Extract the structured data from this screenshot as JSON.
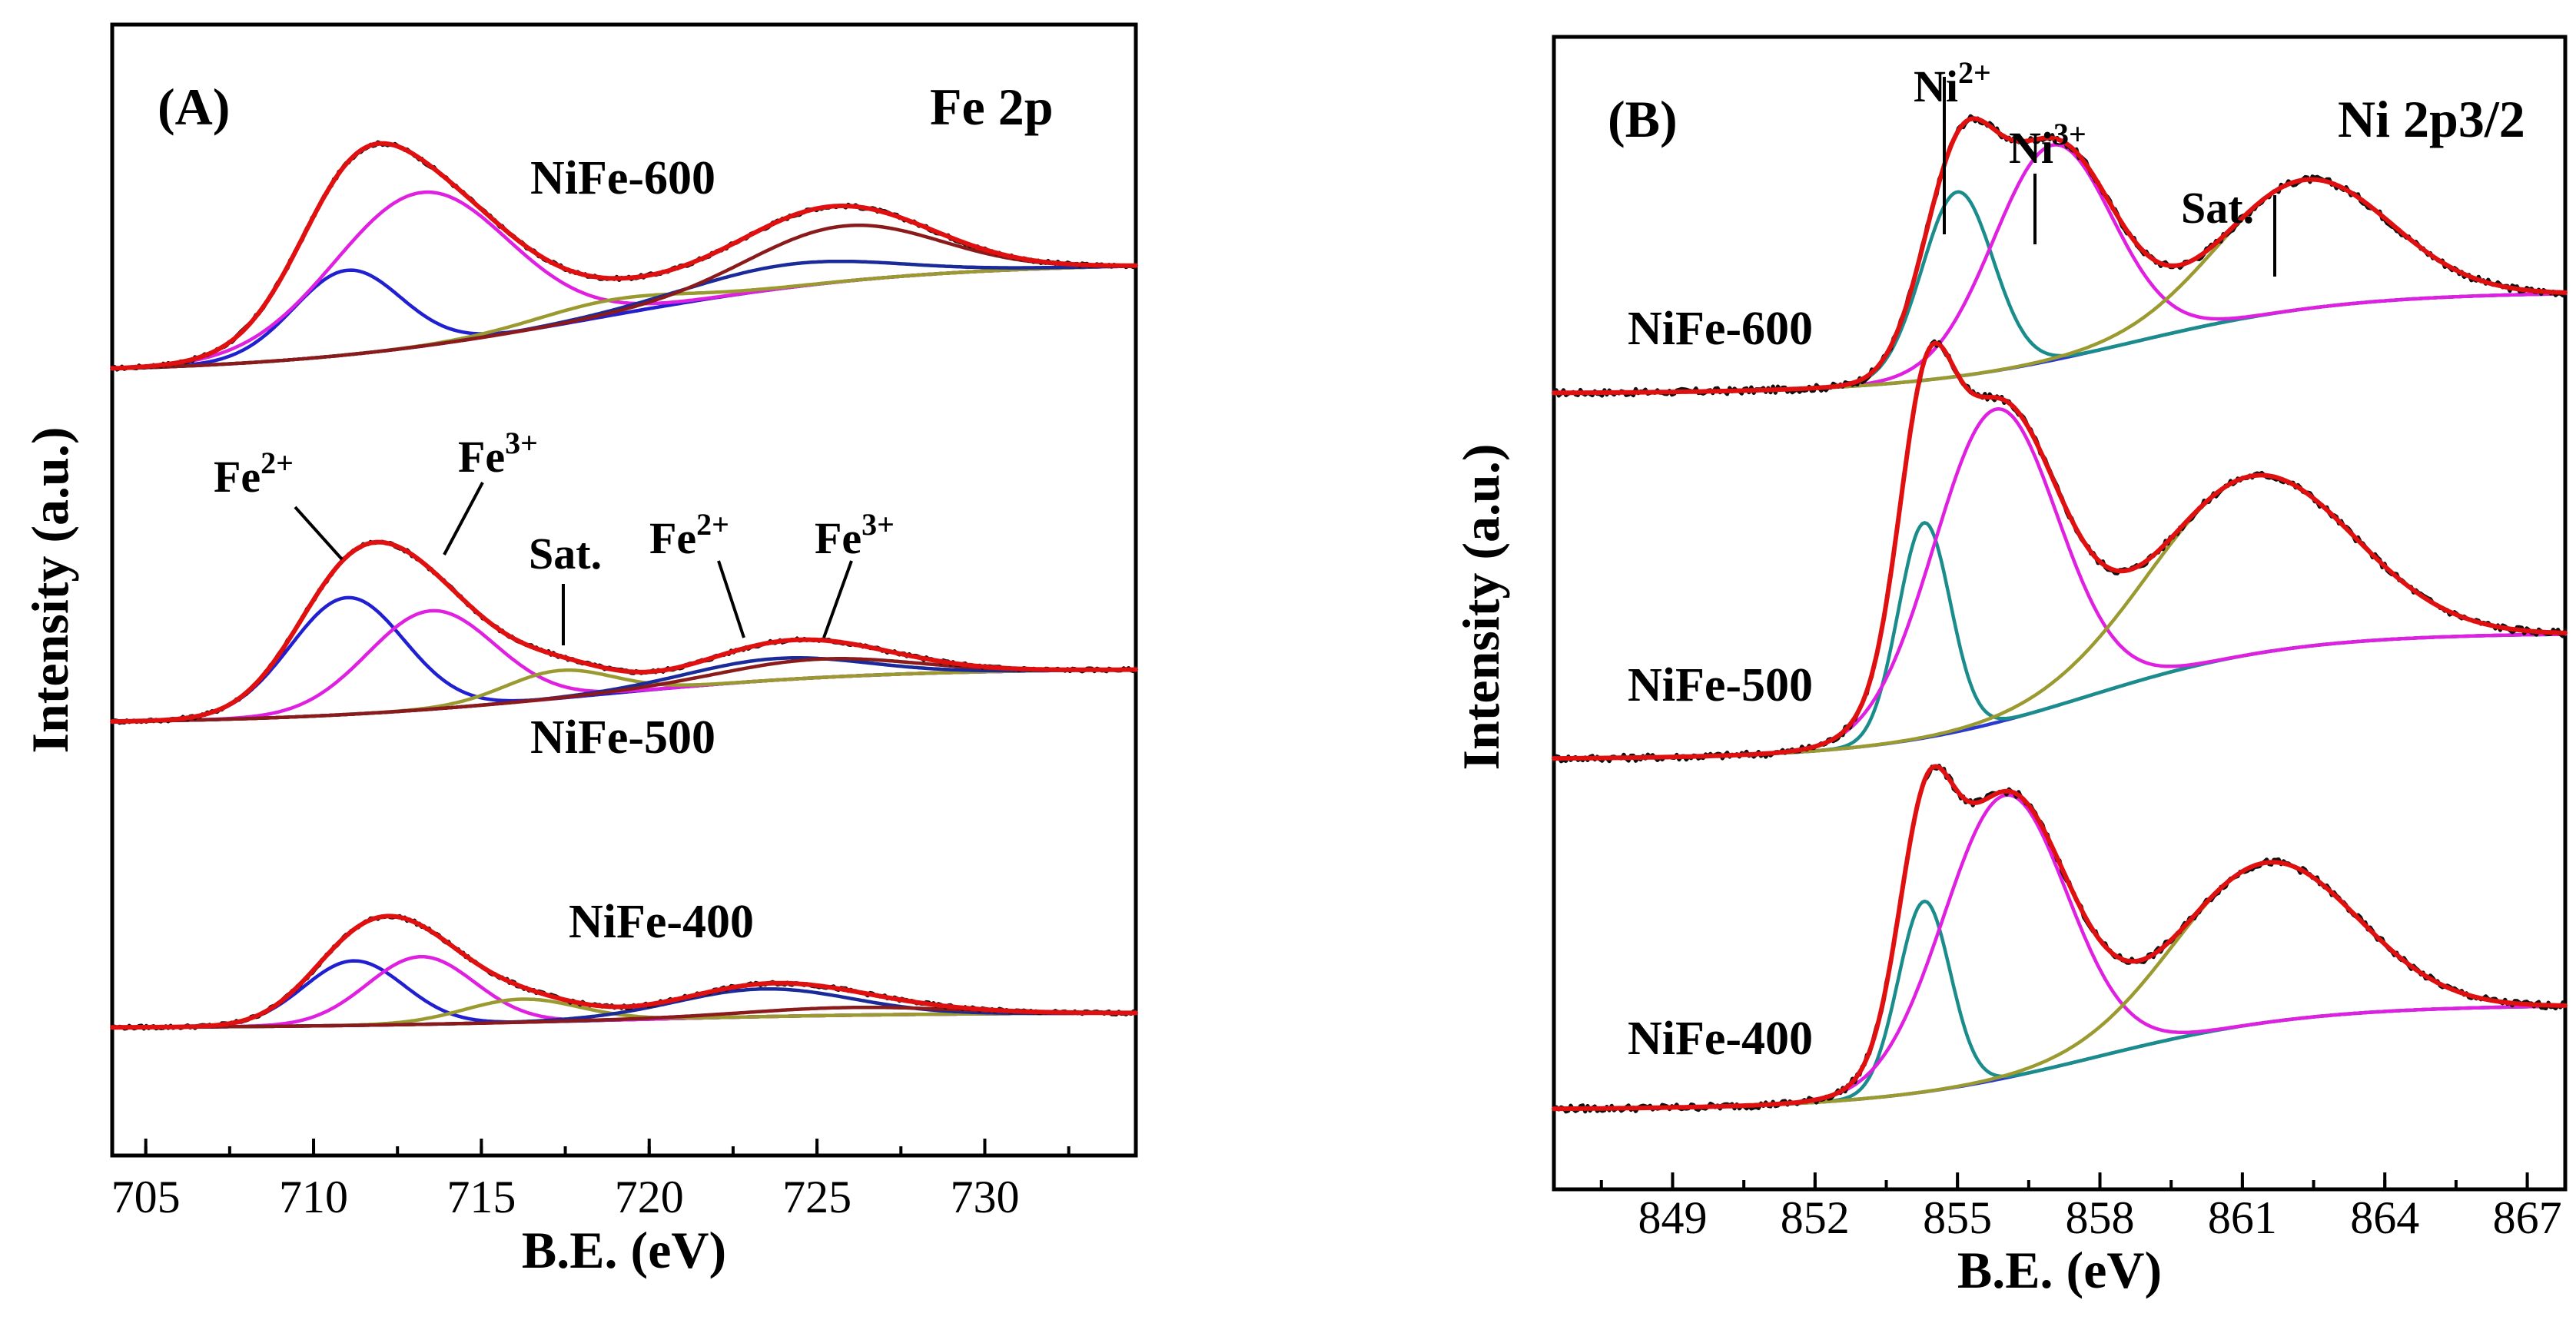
{
  "colors": {
    "envelope": "#e01010",
    "raw": "#101010",
    "fe2": "#2020d0",
    "fe3": "#e020e0",
    "sat": "#9a9a30",
    "fe2p12": "#1a2a9a",
    "fe3p12": "#8b1a1a",
    "background": "#e0306a",
    "ni2": "#1a8c8c",
    "ni3": "#e020e0",
    "nisat": "#9a9a30",
    "nibg": "#2a3ad0"
  },
  "panelA": {
    "label": "(A)",
    "element": "Fe 2p",
    "xlabel": "B.E. (eV)",
    "ylabel": "Intensity (a.u.)",
    "xticks": [
      "705",
      "710",
      "715",
      "720",
      "725",
      "730"
    ],
    "samples": [
      "NiFe-600",
      "NiFe-500",
      "NiFe-400"
    ],
    "annotations": [
      {
        "base": "Fe",
        "sup": "2+"
      },
      {
        "base": "Fe",
        "sup": "3+"
      },
      {
        "base": "Sat.",
        "sup": ""
      },
      {
        "base": "Fe",
        "sup": "2+"
      },
      {
        "base": "Fe",
        "sup": "3+"
      }
    ]
  },
  "panelB": {
    "label": "(B)",
    "element": "Ni 2p3/2",
    "xlabel": "B.E. (eV)",
    "ylabel": "Intensity (a.u.)",
    "xticks": [
      "849",
      "852",
      "855",
      "858",
      "861",
      "864",
      "867"
    ],
    "samples": [
      "NiFe-600",
      "NiFe-500",
      "NiFe-400"
    ],
    "annotations": [
      {
        "base": "Ni",
        "sup": "2+"
      },
      {
        "base": "Ni",
        "sup": "3+"
      },
      {
        "base": "Sat.",
        "sup": ""
      }
    ]
  },
  "chart_data": [
    {
      "type": "line",
      "title": "Fe 2p",
      "xlabel": "B.E. (eV)",
      "ylabel": "Intensity (a.u.)",
      "xlim": [
        704,
        734.5
      ],
      "xticks": [
        705,
        710,
        715,
        720,
        725,
        730
      ],
      "yticks": "none (arbitrary units, stacked spectra)",
      "components": [
        "raw",
        "envelope",
        "Fe2+ 2p3/2",
        "Fe3+ 2p3/2",
        "Sat.",
        "Fe2+ 2p1/2",
        "Fe3+ 2p1/2",
        "background"
      ],
      "spectra": [
        {
          "name": "NiFe-600",
          "baseline_left": 0.02,
          "baseline_right": 0.74,
          "peaks": [
            {
              "component": "Fe2+ 2p3/2",
              "center": 711.0,
              "height": 0.55,
              "sigma": 1.6
            },
            {
              "component": "Fe3+ 2p3/2",
              "center": 713.2,
              "height": 1.0,
              "sigma": 2.6
            },
            {
              "component": "Sat.",
              "center": 718.8,
              "height": 0.1,
              "sigma": 2.2
            },
            {
              "component": "Fe2+ 2p1/2",
              "center": 724.2,
              "height": 0.15,
              "sigma": 3.0
            },
            {
              "component": "Fe3+ 2p1/2",
              "center": 725.8,
              "height": 0.36,
              "sigma": 2.8
            }
          ]
        },
        {
          "name": "NiFe-500",
          "baseline_left": 0.02,
          "baseline_right": 0.38,
          "peaks": [
            {
              "component": "Fe2+ 2p3/2",
              "center": 711.0,
              "height": 0.76,
              "sigma": 1.7
            },
            {
              "component": "Fe3+ 2p3/2",
              "center": 713.5,
              "height": 0.64,
              "sigma": 1.9
            },
            {
              "component": "Sat.",
              "center": 717.3,
              "height": 0.18,
              "sigma": 1.6
            },
            {
              "component": "Fe2+ 2p1/2",
              "center": 723.8,
              "height": 0.14,
              "sigma": 2.6
            },
            {
              "component": "Fe3+ 2p1/2",
              "center": 725.0,
              "height": 0.12,
              "sigma": 2.8
            }
          ]
        },
        {
          "name": "NiFe-400",
          "baseline_left": 0.02,
          "baseline_right": 0.12,
          "peaks": [
            {
              "component": "Fe2+ 2p3/2",
              "center": 711.2,
              "height": 0.42,
              "sigma": 1.5
            },
            {
              "component": "Fe3+ 2p3/2",
              "center": 713.2,
              "height": 0.44,
              "sigma": 1.6
            },
            {
              "component": "Sat.",
              "center": 716.2,
              "height": 0.15,
              "sigma": 1.7
            },
            {
              "component": "Fe2+ 2p1/2",
              "center": 723.4,
              "height": 0.18,
              "sigma": 2.6
            },
            {
              "component": "Fe3+ 2p1/2",
              "center": 726.0,
              "height": 0.05,
              "sigma": 3.0
            }
          ]
        }
      ]
    },
    {
      "type": "line",
      "title": "Ni 2p3/2",
      "xlabel": "B.E. (eV)",
      "ylabel": "Intensity (a.u.)",
      "xlim": [
        846.5,
        867.8
      ],
      "xticks": [
        849,
        852,
        855,
        858,
        861,
        864,
        867
      ],
      "yticks": "none (arbitrary units, stacked spectra)",
      "components": [
        "raw",
        "envelope",
        "Ni2+",
        "Ni3+",
        "Sat.",
        "background"
      ],
      "spectra": [
        {
          "name": "NiFe-600",
          "baseline_left": 0.0,
          "baseline_right": 0.33,
          "peaks": [
            {
              "component": "Ni2+",
              "center": 855.0,
              "height": 0.6,
              "sigma": 0.75
            },
            {
              "component": "Ni3+",
              "center": 857.0,
              "height": 0.7,
              "sigma": 1.25
            },
            {
              "component": "Sat.",
              "center": 862.3,
              "height": 0.42,
              "sigma": 1.8
            }
          ]
        },
        {
          "name": "NiFe-500",
          "baseline_left": 0.0,
          "baseline_right": 0.41,
          "peaks": [
            {
              "component": "Ni2+",
              "center": 854.3,
              "height": 0.7,
              "sigma": 0.55
            },
            {
              "component": "Ni3+",
              "center": 855.8,
              "height": 1.02,
              "sigma": 1.3
            },
            {
              "component": "Sat.",
              "center": 861.2,
              "height": 0.58,
              "sigma": 2.1
            }
          ]
        },
        {
          "name": "NiFe-400",
          "baseline_left": 0.0,
          "baseline_right": 0.34,
          "peaks": [
            {
              "component": "Ni2+",
              "center": 854.3,
              "height": 0.62,
              "sigma": 0.55
            },
            {
              "component": "Ni3+",
              "center": 856.0,
              "height": 0.92,
              "sigma": 1.3
            },
            {
              "component": "Sat.",
              "center": 861.5,
              "height": 0.52,
              "sigma": 1.9
            }
          ]
        }
      ]
    }
  ]
}
